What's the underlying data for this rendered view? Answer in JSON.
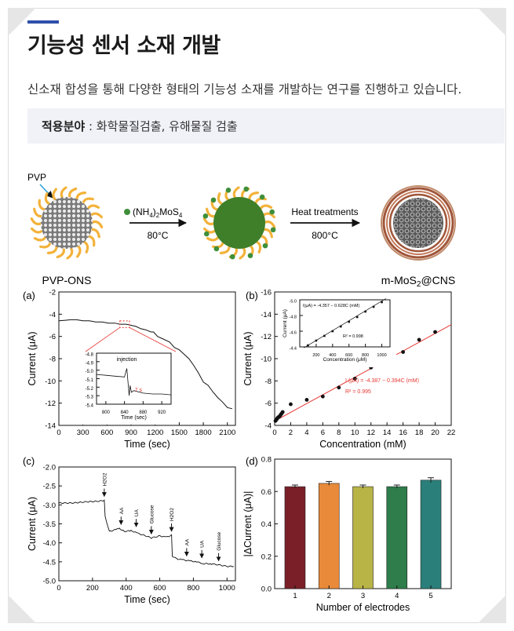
{
  "header": {
    "title": "기능성 센서 소재 개발",
    "description": "신소재 합성을 통해 다양한 형태의 기능성 소재를 개발하는 연구를 진행하고 있습니다.",
    "applications_label": "적용분야",
    "applications_sep": " : ",
    "applications_value": "화학물질검출, 유해물질 검출"
  },
  "schematic": {
    "pvp_label": "PVP",
    "step1_reagent": "(NH4)2MoS4",
    "step1_temp": "80°C",
    "step2_label": "Heat treatments",
    "step2_temp": "800°C",
    "left_name": "PVP-ONS",
    "right_name": "m-MoS2@CNS"
  },
  "colors": {
    "bar_colors": [
      "#7a1f28",
      "#e98a3a",
      "#b9b446",
      "#2e7d4a",
      "#2a7f7a"
    ],
    "fit_line": "#e53935",
    "shell_yellow": "#f3b23a",
    "core_green": "#3f7f2a",
    "cns_ring": "#b06548"
  },
  "chart_data": [
    {
      "panel": "(a)",
      "type": "line",
      "xlabel": "Time (sec)",
      "ylabel": "Current (μA)",
      "xlim": [
        0,
        2200
      ],
      "ylim": [
        -14,
        -2
      ],
      "xticks": [
        0,
        300,
        600,
        900,
        1200,
        1500,
        1800,
        2100
      ],
      "yticks": [
        -2,
        -4,
        -6,
        -8,
        -10,
        -12,
        -14
      ],
      "series": [
        {
          "x": [
            0,
            80,
            150,
            220,
            300,
            380,
            460,
            540,
            620,
            700,
            760,
            840,
            900,
            960,
            1020,
            1080,
            1150,
            1180,
            1230,
            1290,
            1380,
            1440,
            1500,
            1560,
            1620,
            1680,
            1740,
            1800,
            1860,
            1920,
            1980,
            2040,
            2100,
            2160
          ],
          "y": [
            -4.6,
            -4.55,
            -4.5,
            -4.5,
            -4.6,
            -4.6,
            -4.7,
            -4.7,
            -4.8,
            -4.8,
            -4.9,
            -4.9,
            -5.0,
            -5.1,
            -5.3,
            -5.4,
            -5.6,
            -5.6,
            -6.0,
            -6.2,
            -6.5,
            -7.0,
            -7.2,
            -7.6,
            -8.0,
            -8.6,
            -9.3,
            -10.1,
            -10.4,
            -11.0,
            -11.5,
            -11.9,
            -12.4,
            -12.5
          ]
        }
      ],
      "inset": {
        "xlabel": "Time (sec)",
        "xlim": [
          780,
          940
        ],
        "ylim": [
          -5.4,
          -4.8
        ],
        "xticks": [
          800,
          840,
          880,
          920
        ],
        "yticks": [
          -4.8,
          -4.9,
          -5.0,
          -5.1,
          -5.2,
          -5.3,
          -5.4
        ],
        "annotation_1": "injection",
        "annotation_2": "7 s"
      }
    },
    {
      "panel": "(b)",
      "type": "scatter",
      "xlabel": "Concentration (mM)",
      "ylabel": "Current (μA)",
      "xlim": [
        0,
        22
      ],
      "ylim": [
        -4,
        -16
      ],
      "xticks": [
        0,
        2,
        4,
        6,
        8,
        10,
        12,
        14,
        16,
        18,
        20,
        22
      ],
      "yticks": [
        -4,
        -6,
        -8,
        -10,
        -12,
        -14,
        -16
      ],
      "x": [
        0.1,
        0.2,
        0.3,
        0.4,
        0.5,
        0.6,
        0.7,
        0.8,
        0.9,
        1.0,
        2,
        4,
        6,
        8,
        10,
        12,
        14,
        16,
        18,
        20
      ],
      "y": [
        -4.4,
        -4.5,
        -4.6,
        -4.7,
        -4.75,
        -4.8,
        -4.9,
        -5.0,
        -5.1,
        -5.2,
        -5.9,
        -6.3,
        -6.6,
        -7.4,
        -8.2,
        -9.2,
        -9.7,
        -10.6,
        -11.7,
        -12.4
      ],
      "fit_equation": "I (μA) = -4.387 − 0.394C (mM)",
      "fit_r2": "R² = 0.995",
      "inset": {
        "xlabel": "Concentration (μM)",
        "ylabel": "Current (μA)",
        "xlim": [
          0,
          1100
        ],
        "ylim": [
          -4.4,
          -5.0
        ],
        "xticks": [
          200,
          400,
          600,
          800,
          1000
        ],
        "yticks": [
          -4.4,
          -4.6,
          -4.8,
          -5.0
        ],
        "x": [
          100,
          200,
          300,
          400,
          500,
          600,
          700,
          800,
          900,
          1000
        ],
        "y": [
          -4.42,
          -4.48,
          -4.54,
          -4.6,
          -4.66,
          -4.72,
          -4.78,
          -4.85,
          -4.91,
          -4.97
        ],
        "equation": "I(μA) = -4.357 − 0.628C (mM)",
        "r2": "R² = 0.998"
      }
    },
    {
      "panel": "(c)",
      "type": "line",
      "xlabel": "Time (sec)",
      "ylabel": "Current (μA)",
      "xlim": [
        0,
        1050
      ],
      "ylim": [
        -5.0,
        -2.0
      ],
      "xticks": [
        0,
        200,
        400,
        600,
        800,
        1000
      ],
      "yticks": [
        -2.0,
        -2.5,
        -3.0,
        -3.5,
        -4.0,
        -4.5,
        -5.0
      ],
      "series": [
        {
          "x": [
            0,
            80,
            160,
            240,
            270,
            275,
            300,
            340,
            360,
            390,
            430,
            470,
            520,
            550,
            600,
            640,
            670,
            675,
            700,
            740,
            780,
            820,
            860,
            900,
            950,
            1000,
            1040
          ],
          "y": [
            -2.95,
            -2.95,
            -2.92,
            -2.9,
            -2.88,
            -3.3,
            -3.7,
            -3.65,
            -3.62,
            -3.7,
            -3.68,
            -3.75,
            -3.82,
            -3.87,
            -3.82,
            -3.85,
            -3.8,
            -4.35,
            -4.42,
            -4.45,
            -4.48,
            -4.5,
            -4.55,
            -4.55,
            -4.58,
            -4.62,
            -4.62
          ]
        }
      ],
      "annotations": [
        {
          "label": "H2O2",
          "x": 270
        },
        {
          "label": "AA",
          "x": 370
        },
        {
          "label": "UA",
          "x": 460
        },
        {
          "label": "Glucose",
          "x": 550
        },
        {
          "label": "H2O2",
          "x": 670
        },
        {
          "label": "AA",
          "x": 760
        },
        {
          "label": "UA",
          "x": 850
        },
        {
          "label": "Glucose",
          "x": 950
        }
      ]
    },
    {
      "panel": "(d)",
      "type": "bar",
      "xlabel": "Number of electrodes",
      "ylabel": "|ΔCurrent (μA)|",
      "categories": [
        "1",
        "2",
        "3",
        "4",
        "5"
      ],
      "values": [
        0.63,
        0.65,
        0.63,
        0.63,
        0.67
      ],
      "errors": [
        0.01,
        0.012,
        0.01,
        0.01,
        0.015
      ],
      "ylim": [
        0,
        0.8
      ],
      "yticks": [
        0.0,
        0.2,
        0.4,
        0.6,
        0.8
      ]
    }
  ]
}
